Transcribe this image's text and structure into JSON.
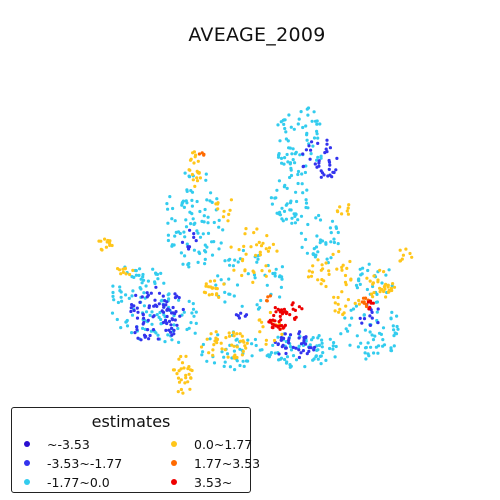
{
  "map": {
    "title": "AVEAGE_2009"
  },
  "legend": {
    "title": "estimates",
    "items": [
      {
        "label": "~-3.53",
        "color": "#2a0fd0"
      },
      {
        "label": "-3.53~-1.77",
        "color": "#3333ee"
      },
      {
        "label": "-1.77~0.0",
        "color": "#33ccee"
      },
      {
        "label": "0.0~1.77",
        "color": "#ffc61a"
      },
      {
        "label": "1.77~3.53",
        "color": "#ff6a00"
      },
      {
        "label": "3.53~",
        "color": "#ee0000"
      }
    ]
  },
  "colors": {
    "very_low": "#2a0fd0",
    "low": "#3333ee",
    "mid_low": "#33ccee",
    "mid_high": "#ffc61a",
    "high": "#ff6a00",
    "very_high": "#ee0000"
  }
}
